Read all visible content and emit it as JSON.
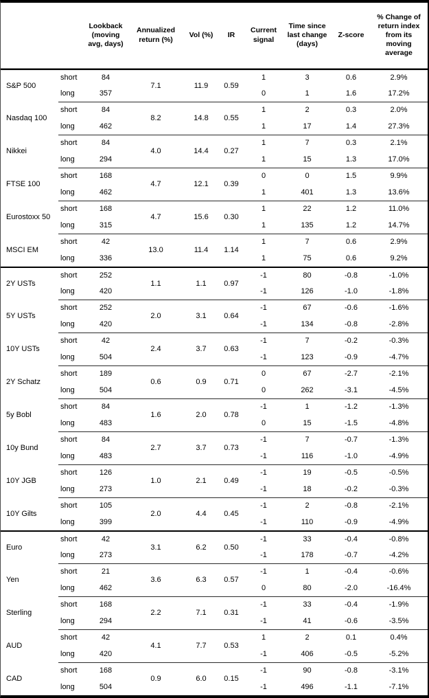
{
  "table": {
    "header": {
      "instrument": "",
      "leg": "",
      "lookback": "Lookback (moving avg, days)",
      "annualized": "Annualized return (%)",
      "vol": "Vol (%)",
      "ir": "IR",
      "signal": "Current signal",
      "time": "Time since last change (days)",
      "zscore": "Z-score",
      "pct_change": "% Change of return index from its moving average"
    },
    "colors": {
      "text": "#000000",
      "background": "#ffffff",
      "rule": "#000000"
    },
    "groups": [
      {
        "name": "S&P 500",
        "section_start": false,
        "annualized": "7.1",
        "vol": "11.9",
        "ir": "0.59",
        "rows": [
          {
            "leg": "short",
            "lookback": "84",
            "signal": "1",
            "time": "3",
            "z": "0.6",
            "pct": "2.9%"
          },
          {
            "leg": "long",
            "lookback": "357",
            "signal": "0",
            "time": "1",
            "z": "1.6",
            "pct": "17.2%"
          }
        ]
      },
      {
        "name": "Nasdaq 100",
        "section_start": false,
        "annualized": "8.2",
        "vol": "14.8",
        "ir": "0.55",
        "rows": [
          {
            "leg": "short",
            "lookback": "84",
            "signal": "1",
            "time": "2",
            "z": "0.3",
            "pct": "2.0%"
          },
          {
            "leg": "long",
            "lookback": "462",
            "signal": "1",
            "time": "17",
            "z": "1.4",
            "pct": "27.3%"
          }
        ]
      },
      {
        "name": "Nikkei",
        "section_start": false,
        "annualized": "4.0",
        "vol": "14.4",
        "ir": "0.27",
        "rows": [
          {
            "leg": "short",
            "lookback": "84",
            "signal": "1",
            "time": "7",
            "z": "0.3",
            "pct": "2.1%"
          },
          {
            "leg": "long",
            "lookback": "294",
            "signal": "1",
            "time": "15",
            "z": "1.3",
            "pct": "17.0%"
          }
        ]
      },
      {
        "name": "FTSE 100",
        "section_start": false,
        "annualized": "4.7",
        "vol": "12.1",
        "ir": "0.39",
        "rows": [
          {
            "leg": "short",
            "lookback": "168",
            "signal": "0",
            "time": "0",
            "z": "1.5",
            "pct": "9.9%"
          },
          {
            "leg": "long",
            "lookback": "462",
            "signal": "1",
            "time": "401",
            "z": "1.3",
            "pct": "13.6%"
          }
        ]
      },
      {
        "name": "Eurostoxx 50",
        "section_start": false,
        "annualized": "4.7",
        "vol": "15.6",
        "ir": "0.30",
        "rows": [
          {
            "leg": "short",
            "lookback": "168",
            "signal": "1",
            "time": "22",
            "z": "1.2",
            "pct": "11.0%"
          },
          {
            "leg": "long",
            "lookback": "315",
            "signal": "1",
            "time": "135",
            "z": "1.2",
            "pct": "14.7%"
          }
        ]
      },
      {
        "name": "MSCI EM",
        "section_start": false,
        "annualized": "13.0",
        "vol": "11.4",
        "ir": "1.14",
        "rows": [
          {
            "leg": "short",
            "lookback": "42",
            "signal": "1",
            "time": "7",
            "z": "0.6",
            "pct": "2.9%"
          },
          {
            "leg": "long",
            "lookback": "336",
            "signal": "1",
            "time": "75",
            "z": "0.6",
            "pct": "9.2%"
          }
        ]
      },
      {
        "name": "2Y USTs",
        "section_start": true,
        "annualized": "1.1",
        "vol": "1.1",
        "ir": "0.97",
        "rows": [
          {
            "leg": "short",
            "lookback": "252",
            "signal": "-1",
            "time": "80",
            "z": "-0.8",
            "pct": "-1.0%"
          },
          {
            "leg": "long",
            "lookback": "420",
            "signal": "-1",
            "time": "126",
            "z": "-1.0",
            "pct": "-1.8%"
          }
        ]
      },
      {
        "name": "5Y USTs",
        "section_start": false,
        "annualized": "2.0",
        "vol": "3.1",
        "ir": "0.64",
        "rows": [
          {
            "leg": "short",
            "lookback": "252",
            "signal": "-1",
            "time": "67",
            "z": "-0.6",
            "pct": "-1.6%"
          },
          {
            "leg": "long",
            "lookback": "420",
            "signal": "-1",
            "time": "134",
            "z": "-0.8",
            "pct": "-2.8%"
          }
        ]
      },
      {
        "name": "10Y USTs",
        "section_start": false,
        "annualized": "2.4",
        "vol": "3.7",
        "ir": "0.63",
        "rows": [
          {
            "leg": "short",
            "lookback": "42",
            "signal": "-1",
            "time": "7",
            "z": "-0.2",
            "pct": "-0.3%"
          },
          {
            "leg": "long",
            "lookback": "504",
            "signal": "-1",
            "time": "123",
            "z": "-0.9",
            "pct": "-4.7%"
          }
        ]
      },
      {
        "name": "2Y Schatz",
        "section_start": false,
        "annualized": "0.6",
        "vol": "0.9",
        "ir": "0.71",
        "rows": [
          {
            "leg": "short",
            "lookback": "189",
            "signal": "0",
            "time": "67",
            "z": "-2.7",
            "pct": "-2.1%"
          },
          {
            "leg": "long",
            "lookback": "504",
            "signal": "0",
            "time": "262",
            "z": "-3.1",
            "pct": "-4.5%"
          }
        ]
      },
      {
        "name": "5y Bobl",
        "section_start": false,
        "annualized": "1.6",
        "vol": "2.0",
        "ir": "0.78",
        "rows": [
          {
            "leg": "short",
            "lookback": "84",
            "signal": "-1",
            "time": "1",
            "z": "-1.2",
            "pct": "-1.3%"
          },
          {
            "leg": "long",
            "lookback": "483",
            "signal": "0",
            "time": "15",
            "z": "-1.5",
            "pct": "-4.8%"
          }
        ]
      },
      {
        "name": "10y Bund",
        "section_start": false,
        "annualized": "2.7",
        "vol": "3.7",
        "ir": "0.73",
        "rows": [
          {
            "leg": "short",
            "lookback": "84",
            "signal": "-1",
            "time": "7",
            "z": "-0.7",
            "pct": "-1.3%"
          },
          {
            "leg": "long",
            "lookback": "483",
            "signal": "-1",
            "time": "116",
            "z": "-1.0",
            "pct": "-4.9%"
          }
        ]
      },
      {
        "name": "10Y JGB",
        "section_start": false,
        "annualized": "1.0",
        "vol": "2.1",
        "ir": "0.49",
        "rows": [
          {
            "leg": "short",
            "lookback": "126",
            "signal": "-1",
            "time": "19",
            "z": "-0.5",
            "pct": "-0.5%"
          },
          {
            "leg": "long",
            "lookback": "273",
            "signal": "-1",
            "time": "18",
            "z": "-0.2",
            "pct": "-0.3%"
          }
        ]
      },
      {
        "name": "10Y Gilts",
        "section_start": false,
        "annualized": "2.0",
        "vol": "4.4",
        "ir": "0.45",
        "rows": [
          {
            "leg": "short",
            "lookback": "105",
            "signal": "-1",
            "time": "2",
            "z": "-0.8",
            "pct": "-2.1%"
          },
          {
            "leg": "long",
            "lookback": "399",
            "signal": "-1",
            "time": "110",
            "z": "-0.9",
            "pct": "-4.9%"
          }
        ]
      },
      {
        "name": "Euro",
        "section_start": true,
        "annualized": "3.1",
        "vol": "6.2",
        "ir": "0.50",
        "rows": [
          {
            "leg": "short",
            "lookback": "42",
            "signal": "-1",
            "time": "33",
            "z": "-0.4",
            "pct": "-0.8%"
          },
          {
            "leg": "long",
            "lookback": "273",
            "signal": "-1",
            "time": "178",
            "z": "-0.7",
            "pct": "-4.2%"
          }
        ]
      },
      {
        "name": "Yen",
        "section_start": false,
        "annualized": "3.6",
        "vol": "6.3",
        "ir": "0.57",
        "rows": [
          {
            "leg": "short",
            "lookback": "21",
            "signal": "-1",
            "time": "1",
            "z": "-0.4",
            "pct": "-0.6%"
          },
          {
            "leg": "long",
            "lookback": "462",
            "signal": "0",
            "time": "80",
            "z": "-2.0",
            "pct": "-16.4%"
          }
        ]
      },
      {
        "name": "Sterling",
        "section_start": false,
        "annualized": "2.2",
        "vol": "7.1",
        "ir": "0.31",
        "rows": [
          {
            "leg": "short",
            "lookback": "168",
            "signal": "-1",
            "time": "33",
            "z": "-0.4",
            "pct": "-1.9%"
          },
          {
            "leg": "long",
            "lookback": "294",
            "signal": "-1",
            "time": "41",
            "z": "-0.6",
            "pct": "-3.5%"
          }
        ]
      },
      {
        "name": "AUD",
        "section_start": false,
        "annualized": "4.1",
        "vol": "7.7",
        "ir": "0.53",
        "rows": [
          {
            "leg": "short",
            "lookback": "42",
            "signal": "1",
            "time": "2",
            "z": "0.1",
            "pct": "0.4%"
          },
          {
            "leg": "long",
            "lookback": "420",
            "signal": "-1",
            "time": "406",
            "z": "-0.5",
            "pct": "-5.2%"
          }
        ]
      },
      {
        "name": "CAD",
        "section_start": false,
        "annualized": "0.9",
        "vol": "6.0",
        "ir": "0.15",
        "rows": [
          {
            "leg": "short",
            "lookback": "168",
            "signal": "-1",
            "time": "90",
            "z": "-0.8",
            "pct": "-3.1%"
          },
          {
            "leg": "long",
            "lookback": "504",
            "signal": "-1",
            "time": "496",
            "z": "-1.1",
            "pct": "-7.1%"
          }
        ]
      }
    ]
  }
}
